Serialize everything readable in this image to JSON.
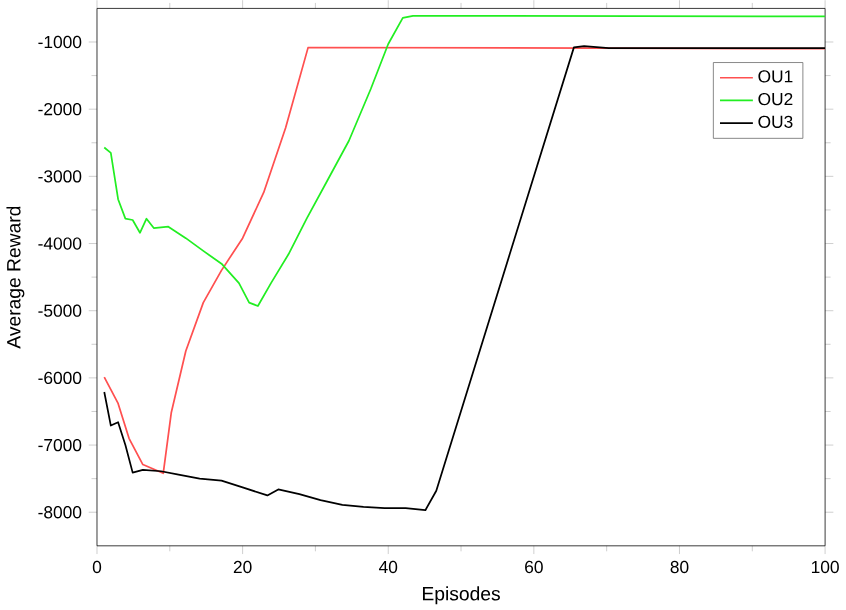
{
  "chart_data": {
    "type": "line",
    "xlabel": "Episodes",
    "ylabel": "Average Reward",
    "xlim": [
      0,
      100
    ],
    "ylim": [
      -8500,
      -500
    ],
    "xticks": [
      0,
      20,
      40,
      60,
      80,
      100
    ],
    "yticks": [
      -8000,
      -7000,
      -6000,
      -5000,
      -4000,
      -3000,
      -2000,
      -1000
    ],
    "legend": "top right",
    "grid": false,
    "marker": "none",
    "line_style": "solid",
    "series": [
      {
        "name": "OU1",
        "color": "#ff5050",
        "x": [
          1,
          2.9,
          4.4,
          6.3,
          9.1,
          10.2,
          12.2,
          14.6,
          17.1,
          20,
          22.9,
          25.9,
          29,
          100
        ],
        "values": [
          -5990,
          -6380,
          -6900,
          -7290,
          -7420,
          -6520,
          -5600,
          -4880,
          -4400,
          -3920,
          -3240,
          -2280,
          -1080,
          -1100
        ]
      },
      {
        "name": "OU2",
        "color": "#22ee22",
        "x": [
          1,
          1.9,
          2.9,
          3.9,
          4.9,
          5.9,
          6.8,
          7.8,
          9.8,
          12.2,
          14.6,
          17.1,
          19.5,
          20.9,
          22.1,
          23.9,
          26.3,
          28.8,
          31.7,
          34.6,
          37.6,
          40,
          42,
          43.4,
          100
        ],
        "values": [
          -2570,
          -2650,
          -3340,
          -3630,
          -3650,
          -3840,
          -3630,
          -3770,
          -3750,
          -3920,
          -4110,
          -4300,
          -4590,
          -4880,
          -4930,
          -4590,
          -4160,
          -3630,
          -3050,
          -2470,
          -1700,
          -1030,
          -640,
          -610,
          -620
        ]
      },
      {
        "name": "OU3",
        "color": "#000000",
        "x": [
          1,
          1.9,
          2.9,
          3.9,
          4.9,
          6.3,
          8.8,
          11.2,
          14.1,
          17.1,
          20,
          23.4,
          24.9,
          27.8,
          30.7,
          33.7,
          36.6,
          39.5,
          42.4,
          45.1,
          46.6,
          65.5,
          66.9,
          70.3,
          100
        ],
        "values": [
          -6210,
          -6710,
          -6660,
          -7000,
          -7410,
          -7370,
          -7390,
          -7440,
          -7500,
          -7530,
          -7630,
          -7750,
          -7660,
          -7730,
          -7820,
          -7890,
          -7920,
          -7940,
          -7940,
          -7970,
          -7680,
          -1080,
          -1060,
          -1090,
          -1090
        ]
      }
    ]
  }
}
